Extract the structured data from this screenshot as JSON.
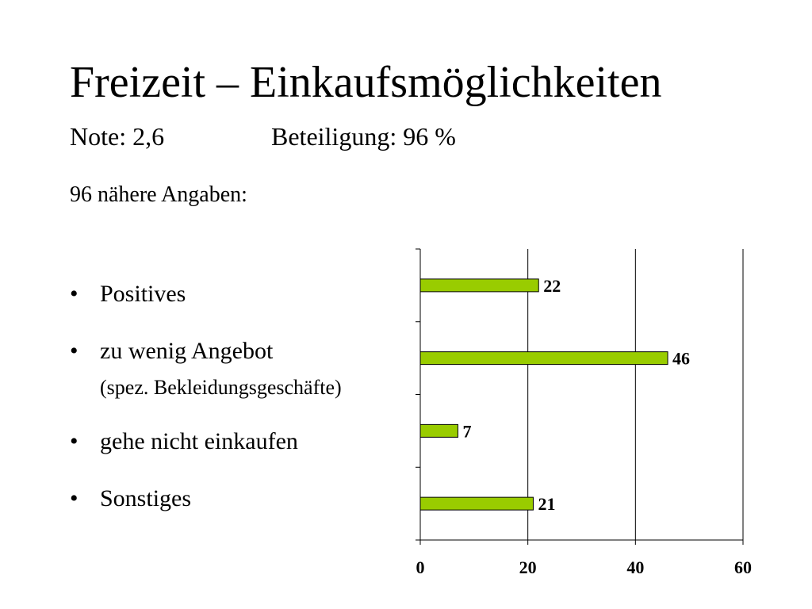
{
  "slide": {
    "title": "Freizeit – Einkaufsmöglichkeiten",
    "note": "Note: 2,6",
    "beteiligung": "Beteiligung: 96 %",
    "angaben": "96 nähere Angaben:"
  },
  "bullets": [
    {
      "text": "Positives",
      "sub": ""
    },
    {
      "text": "zu wenig Angebot",
      "sub": "(spez. Bekleidungsgeschäfte)"
    },
    {
      "text": "gehe nicht einkaufen",
      "sub": ""
    },
    {
      "text": "Sonstiges",
      "sub": ""
    }
  ],
  "bullet_symbol": "•",
  "chart_data": {
    "type": "bar",
    "orientation": "horizontal",
    "categories": [
      "Positives",
      "zu wenig Angebot (spez. Bekleidungsgeschäfte)",
      "gehe nicht einkaufen",
      "Sonstiges"
    ],
    "values": [
      22,
      46,
      7,
      21
    ],
    "data_labels": [
      "22",
      "46",
      "7",
      "21"
    ],
    "xlim": [
      0,
      60
    ],
    "x_ticks": [
      0,
      20,
      40,
      60
    ],
    "x_tick_labels": [
      "0",
      "20",
      "40",
      "60"
    ],
    "title": "",
    "xlabel": "",
    "ylabel": "",
    "grid": true,
    "legend": "none",
    "bar_color": "#99cc00",
    "bar_edge_color": "#000000"
  }
}
